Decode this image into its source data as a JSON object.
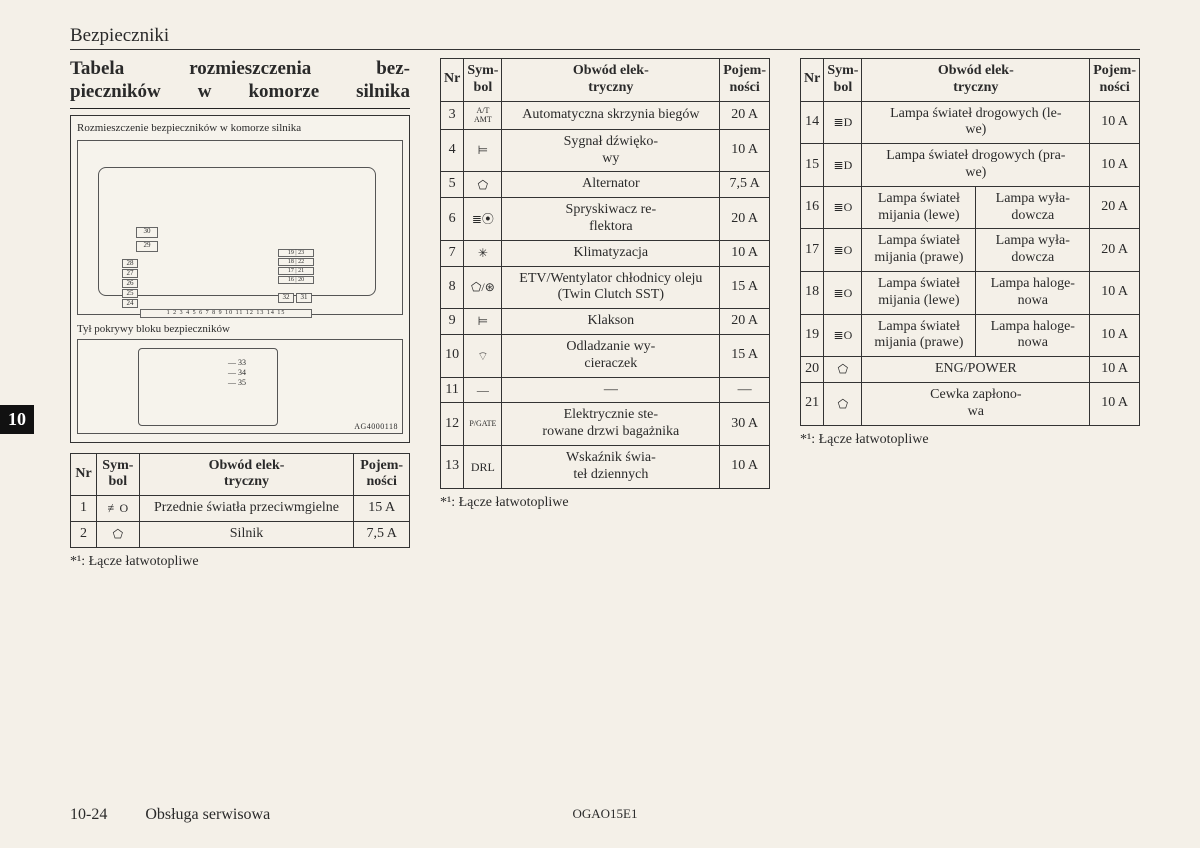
{
  "header": "Bezpieczniki",
  "section_title_l1": "Tabela   rozmieszczenia   bez-",
  "section_title_l2": "pieczników w komorze silnika",
  "diagram_caption1": "Rozmieszczenie bezpieczników w komorze silnika",
  "diagram_caption2": "Tył pokrywy bloku bezpieczników",
  "ag_code": "AG4000118",
  "side_tab": "10",
  "col_headers": {
    "nr": "Nr",
    "sym": "Sym-\nbol",
    "obw": "Obwód elek-\ntryczny",
    "poj": "Pojem-\nności"
  },
  "note": "*¹: Łącze łatwotopliwe",
  "table1": [
    {
      "nr": "1",
      "sym": "≢O",
      "obw": "Przednie światła przeciwmgielne",
      "poj": "15 A"
    },
    {
      "nr": "2",
      "sym": "⬠",
      "obw": "Silnik",
      "poj": "7,5 A"
    }
  ],
  "table2": [
    {
      "nr": "3",
      "sym": "A/T\nAMT",
      "obw": "Automatyczna skrzynia biegów",
      "poj": "20 A"
    },
    {
      "nr": "4",
      "sym": "⊨",
      "obw": "Sygnał dźwięko-\nwy",
      "poj": "10 A"
    },
    {
      "nr": "5",
      "sym": "⬠",
      "obw": "Alternator",
      "poj": "7,5 A"
    },
    {
      "nr": "6",
      "sym": "≣⦿",
      "obw": "Spryskiwacz re-\nflektora",
      "poj": "20 A"
    },
    {
      "nr": "7",
      "sym": "✳",
      "obw": "Klimatyzacja",
      "poj": "10 A"
    },
    {
      "nr": "8",
      "sym": "⬠/⊛",
      "obw": "ETV/Wentylator chłodnicy oleju (Twin Clutch SST)",
      "poj": "15 A"
    },
    {
      "nr": "9",
      "sym": "⊨",
      "obw": "Klakson",
      "poj": "20 A"
    },
    {
      "nr": "10",
      "sym": "⌔",
      "obw": "Odladzanie wy-\ncieraczek",
      "poj": "15 A"
    },
    {
      "nr": "11",
      "sym": "—",
      "obw": "—",
      "poj": "—"
    },
    {
      "nr": "12",
      "sym": "P/GATE",
      "obw": "Elektrycznie ste-\nrowane drzwi bagażnika",
      "poj": "30 A"
    },
    {
      "nr": "13",
      "sym": "DRL",
      "obw": "Wskaźnik świa-\nteł dziennych",
      "poj": "10 A"
    }
  ],
  "table3": [
    {
      "nr": "14",
      "sym": "≣D",
      "obw": "Lampa świateł drogowych (le-\nwe)",
      "poj": "10 A"
    },
    {
      "nr": "15",
      "sym": "≣D",
      "obw": "Lampa świateł drogowych (pra-\nwe)",
      "poj": "10 A"
    },
    {
      "nr": "16",
      "sym": "≣O",
      "obw_l": "Lampa świateł mijania (lewe)",
      "obw_r": "Lampa wyła-\ndowcza",
      "poj": "20 A"
    },
    {
      "nr": "17",
      "sym": "≣O",
      "obw_l": "Lampa świateł mijania (prawe)",
      "obw_r": "Lampa wyła-\ndowcza",
      "poj": "20 A"
    },
    {
      "nr": "18",
      "sym": "≣O",
      "obw_l": "Lampa świateł mijania (lewe)",
      "obw_r": "Lampa haloge-\nnowa",
      "poj": "10 A"
    },
    {
      "nr": "19",
      "sym": "≣O",
      "obw_l": "Lampa świateł mijania (prawe)",
      "obw_r": "Lampa haloge-\nnowa",
      "poj": "10 A"
    },
    {
      "nr": "20",
      "sym": "⬠",
      "obw": "ENG/POWER",
      "poj": "10 A"
    },
    {
      "nr": "21",
      "sym": "⬠",
      "obw": "Cewka zapłono-\nwa",
      "poj": "10 A"
    }
  ],
  "footer": {
    "page": "10-24",
    "section": "Obsługa serwisowa",
    "doc": "OGAO15E1"
  },
  "colors": {
    "bg": "#f4f0e8",
    "ink": "#2a2a2a",
    "border": "#333333"
  }
}
